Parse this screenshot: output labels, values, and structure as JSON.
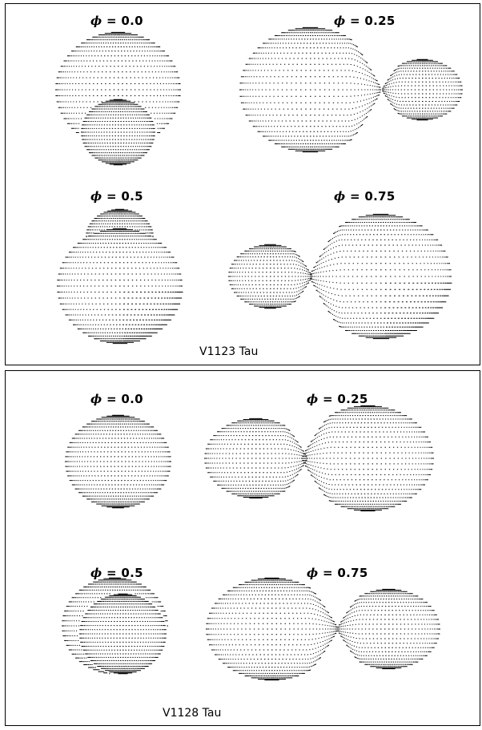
{
  "panels": [
    {
      "star_name": "V1123 Tau",
      "phases": [
        {
          "symbol": "ϕ",
          "text": "= 0.0"
        },
        {
          "symbol": "ϕ",
          "text": "= 0.25"
        },
        {
          "symbol": "ϕ",
          "text": "= 0.5"
        },
        {
          "symbol": "ϕ",
          "text": "= 0.75"
        }
      ]
    },
    {
      "star_name": "V1128 Tau",
      "phases": [
        {
          "symbol": "ϕ",
          "text": "= 0.0"
        },
        {
          "symbol": "ϕ",
          "text": "= 0.25"
        },
        {
          "symbol": "ϕ",
          "text": "= 0.5"
        },
        {
          "symbol": "ϕ",
          "text": "= 0.75"
        }
      ]
    }
  ]
}
